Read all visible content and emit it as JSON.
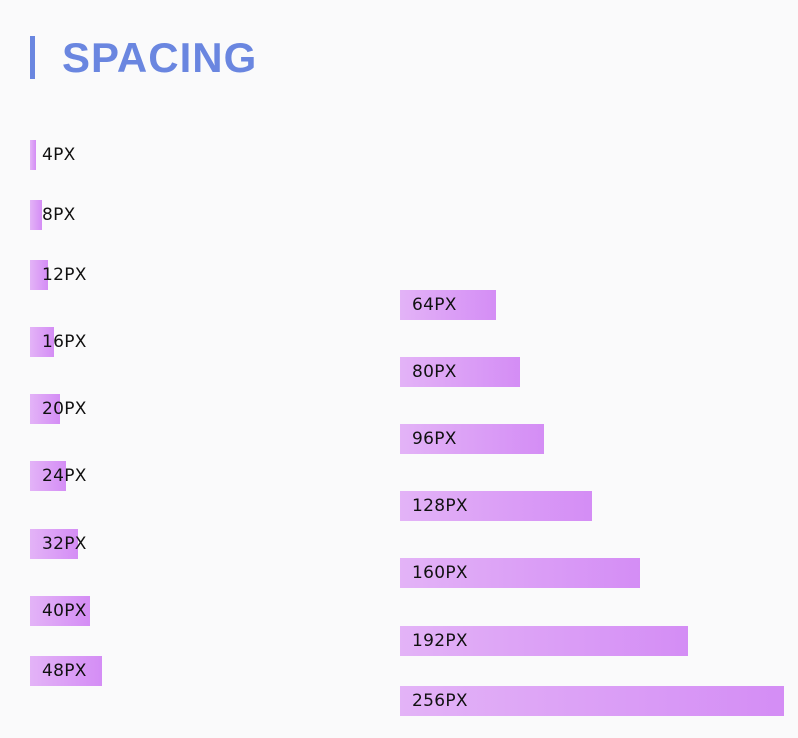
{
  "title": "SPACING",
  "colors": {
    "accent": "#6a86e0",
    "bar_start": "#e3b3f7",
    "bar_end": "#d48df5"
  },
  "left_column": [
    {
      "label": "4PX",
      "value": 4
    },
    {
      "label": "8PX",
      "value": 8
    },
    {
      "label": "12PX",
      "value": 12
    },
    {
      "label": "16PX",
      "value": 16
    },
    {
      "label": "20PX",
      "value": 20
    },
    {
      "label": "24PX",
      "value": 24
    },
    {
      "label": "32PX",
      "value": 32
    },
    {
      "label": "40PX",
      "value": 40
    },
    {
      "label": "48PX",
      "value": 48
    }
  ],
  "right_column": [
    {
      "label": "64PX",
      "value": 64
    },
    {
      "label": "80PX",
      "value": 80
    },
    {
      "label": "96PX",
      "value": 96
    },
    {
      "label": "128PX",
      "value": 128
    },
    {
      "label": "160PX",
      "value": 160
    },
    {
      "label": "192PX",
      "value": 192
    },
    {
      "label": "256PX",
      "value": 256
    }
  ]
}
